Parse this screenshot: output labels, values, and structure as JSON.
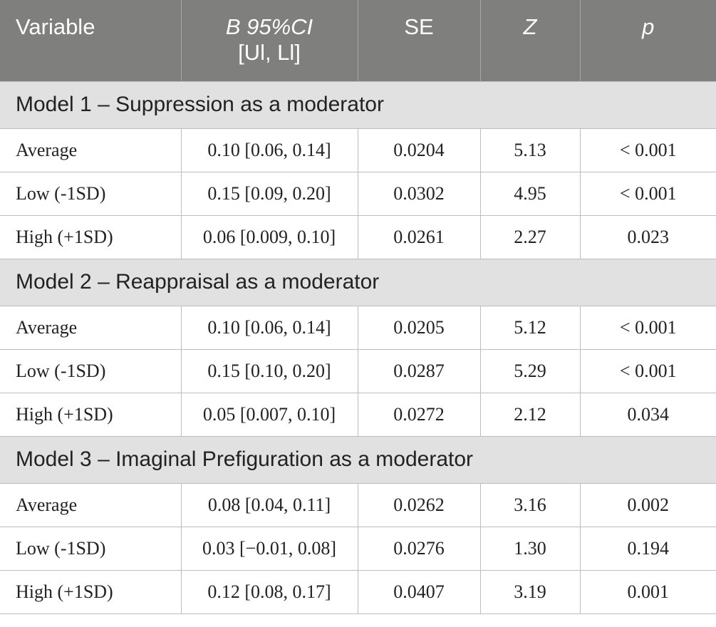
{
  "header": {
    "variable": "Variable",
    "b_ci_line1": "B 95%CI",
    "b_ci_line2": "[Ul, Ll]",
    "se": "SE",
    "z": "Z",
    "p": "p"
  },
  "models": [
    {
      "title": "Model 1 – Suppression as a moderator",
      "rows": [
        {
          "variable": "Average",
          "b_ci": "0.10 [0.06, 0.14]",
          "se": "0.0204",
          "z": "5.13",
          "p": "< 0.001"
        },
        {
          "variable": "Low (-1SD)",
          "b_ci": "0.15 [0.09, 0.20]",
          "se": "0.0302",
          "z": "4.95",
          "p": "< 0.001"
        },
        {
          "variable": "High (+1SD)",
          "b_ci": "0.06 [0.009, 0.10]",
          "se": "0.0261",
          "z": "2.27",
          "p": "0.023"
        }
      ]
    },
    {
      "title": "Model 2 – Reappraisal as a moderator",
      "rows": [
        {
          "variable": "Average",
          "b_ci": "0.10 [0.06, 0.14]",
          "se": "0.0205",
          "z": "5.12",
          "p": "< 0.001"
        },
        {
          "variable": "Low (-1SD)",
          "b_ci": "0.15 [0.10, 0.20]",
          "se": "0.0287",
          "z": "5.29",
          "p": "< 0.001"
        },
        {
          "variable": "High (+1SD)",
          "b_ci": "0.05 [0.007, 0.10]",
          "se": "0.0272",
          "z": "2.12",
          "p": "0.034"
        }
      ]
    },
    {
      "title": "Model 3 – Imaginal Prefiguration as a moderator",
      "rows": [
        {
          "variable": "Average",
          "b_ci": "0.08 [0.04, 0.11]",
          "se": "0.0262",
          "z": "3.16",
          "p": "0.002"
        },
        {
          "variable": "Low (-1SD)",
          "b_ci": "0.03 [−0.01, 0.08]",
          "se": "0.0276",
          "z": "1.30",
          "p": "0.194"
        },
        {
          "variable": "High (+1SD)",
          "b_ci": "0.12 [0.08, 0.17]",
          "se": "0.0407",
          "z": "3.19",
          "p": "0.001"
        }
      ]
    }
  ]
}
